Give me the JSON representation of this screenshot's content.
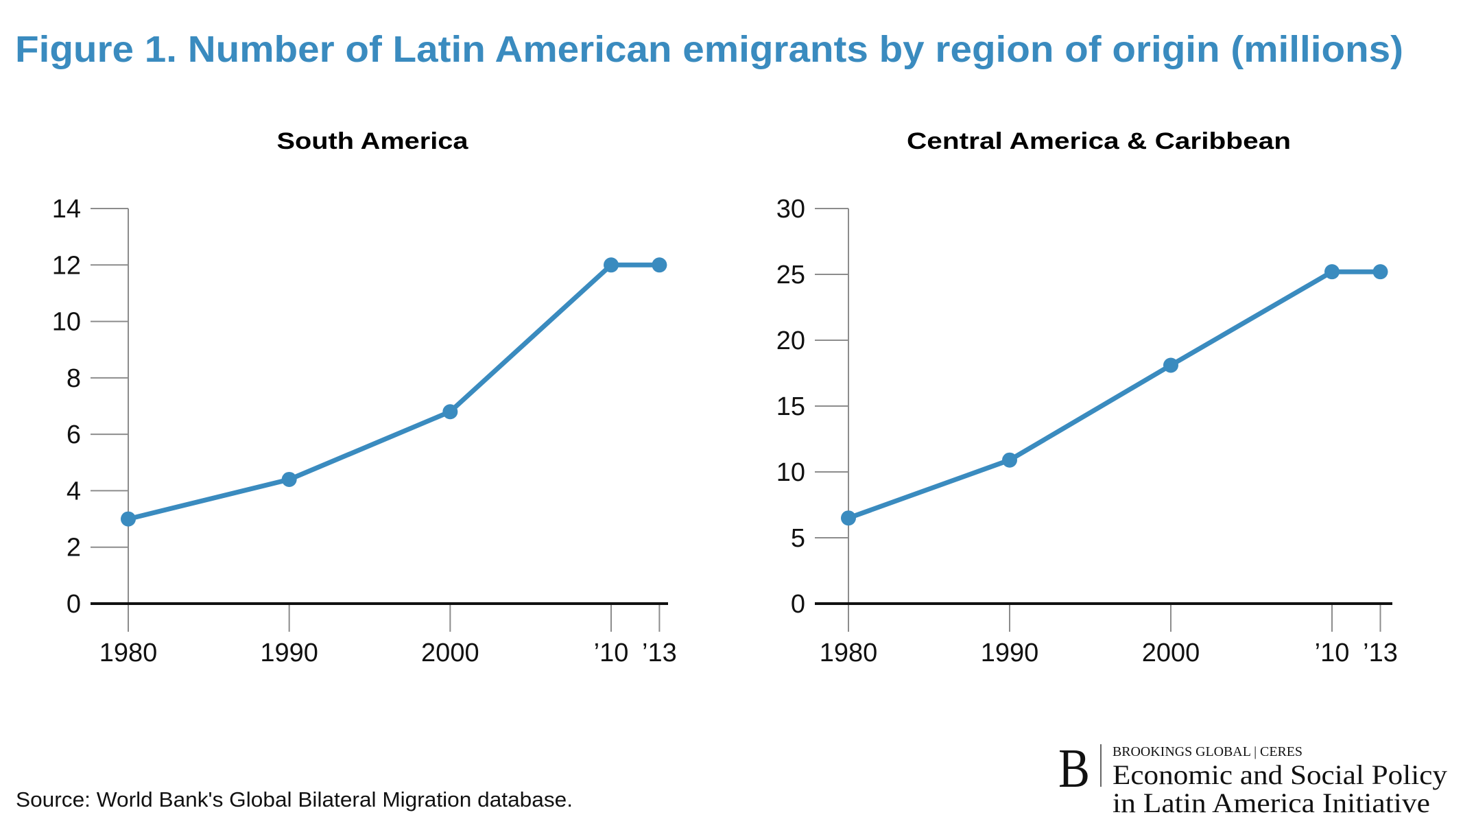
{
  "figure": {
    "title": "Figure 1. Number of Latin American emigrants by region of origin (millions)",
    "source": "Source: World Bank's Global Bilateral Migration database.",
    "accent_color": "#3a8bbf"
  },
  "logo": {
    "mark": "B",
    "line1": "BROOKINGS GLOBAL | CERES",
    "line2": "Economic and Social Policy",
    "line3": "in Latin America Initiative"
  },
  "chart_data": [
    {
      "type": "line",
      "title": "South America",
      "xlabel": "",
      "ylabel": "",
      "x": [
        1980,
        1990,
        2000,
        2010,
        2013
      ],
      "x_tick_labels": [
        "1980",
        "1990",
        "2000",
        "’10",
        "’13"
      ],
      "y_ticks": [
        0,
        2,
        4,
        6,
        8,
        10,
        12,
        14
      ],
      "ylim": [
        0,
        14
      ],
      "grid": false,
      "series": [
        {
          "name": "South America",
          "values": [
            3.0,
            4.4,
            6.8,
            12.0,
            12.0
          ],
          "color": "#3a8bbf"
        }
      ]
    },
    {
      "type": "line",
      "title": "Central America & Caribbean",
      "xlabel": "",
      "ylabel": "",
      "x": [
        1980,
        1990,
        2000,
        2010,
        2013
      ],
      "x_tick_labels": [
        "1980",
        "1990",
        "2000",
        "’10",
        "’13"
      ],
      "y_ticks": [
        0,
        5,
        10,
        15,
        20,
        25,
        30
      ],
      "ylim": [
        0,
        30
      ],
      "grid": false,
      "series": [
        {
          "name": "Central America & Caribbean",
          "values": [
            6.5,
            10.9,
            18.1,
            25.2,
            25.2
          ],
          "color": "#3a8bbf"
        }
      ]
    }
  ]
}
